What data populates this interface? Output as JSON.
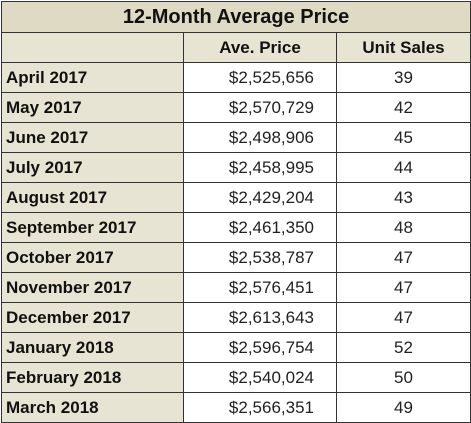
{
  "table": {
    "title": "12-Month Average Price",
    "columns": [
      "",
      "Ave. Price",
      "Unit Sales"
    ],
    "rows": [
      {
        "month": "April 2017",
        "price": "$2,525,656",
        "sales": "39"
      },
      {
        "month": "May 2017",
        "price": "$2,570,729",
        "sales": "42"
      },
      {
        "month": "June 2017",
        "price": "$2,498,906",
        "sales": "45"
      },
      {
        "month": "July 2017",
        "price": "$2,458,995",
        "sales": "44"
      },
      {
        "month": "August 2017",
        "price": "$2,429,204",
        "sales": "43"
      },
      {
        "month": "September 2017",
        "price": "$2,461,350",
        "sales": "48"
      },
      {
        "month": "October 2017",
        "price": "$2,538,787",
        "sales": "47"
      },
      {
        "month": "November 2017",
        "price": "$2,576,451",
        "sales": "47"
      },
      {
        "month": "December 2017",
        "price": "$2,613,643",
        "sales": "47"
      },
      {
        "month": "January 2018",
        "price": "$2,596,754",
        "sales": "52"
      },
      {
        "month": "February 2018",
        "price": "$2,540,024",
        "sales": "50"
      },
      {
        "month": "March 2018",
        "price": "$2,566,351",
        "sales": "49"
      }
    ]
  },
  "colors": {
    "header_fill": "#e8e4d3",
    "title_fill": "#dedac4",
    "cell_fill": "#ffffff",
    "border": "#333333"
  }
}
